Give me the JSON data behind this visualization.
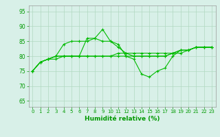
{
  "background_color": "#d8f0e8",
  "grid_color": "#b0d8c0",
  "line_color": "#00bb00",
  "xlabel": "Humidité relative (%)",
  "xlabel_color": "#009900",
  "tick_color": "#009900",
  "ylim": [
    63,
    97
  ],
  "xlim": [
    -0.5,
    23.5
  ],
  "yticks": [
    65,
    70,
    75,
    80,
    85,
    90,
    95
  ],
  "xticks": [
    0,
    1,
    2,
    3,
    4,
    5,
    6,
    7,
    8,
    9,
    10,
    11,
    12,
    13,
    14,
    15,
    16,
    17,
    18,
    19,
    20,
    21,
    22,
    23
  ],
  "series": [
    [
      75,
      78,
      79,
      79,
      80,
      80,
      80,
      86,
      86,
      89,
      85,
      84,
      80,
      79,
      74,
      73,
      75,
      76,
      80,
      82,
      82,
      83,
      83,
      83
    ],
    [
      75,
      78,
      79,
      80,
      84,
      85,
      85,
      85,
      86,
      85,
      85,
      83,
      81,
      80,
      80,
      80,
      80,
      80,
      81,
      81,
      82,
      83,
      83,
      83
    ],
    [
      75,
      78,
      79,
      80,
      80,
      80,
      80,
      80,
      80,
      80,
      80,
      80,
      80,
      80,
      80,
      80,
      80,
      80,
      81,
      82,
      82,
      83,
      83,
      83
    ],
    [
      75,
      78,
      79,
      80,
      80,
      80,
      80,
      80,
      80,
      80,
      80,
      81,
      81,
      81,
      81,
      81,
      81,
      81,
      81,
      82,
      82,
      83,
      83,
      83
    ]
  ]
}
